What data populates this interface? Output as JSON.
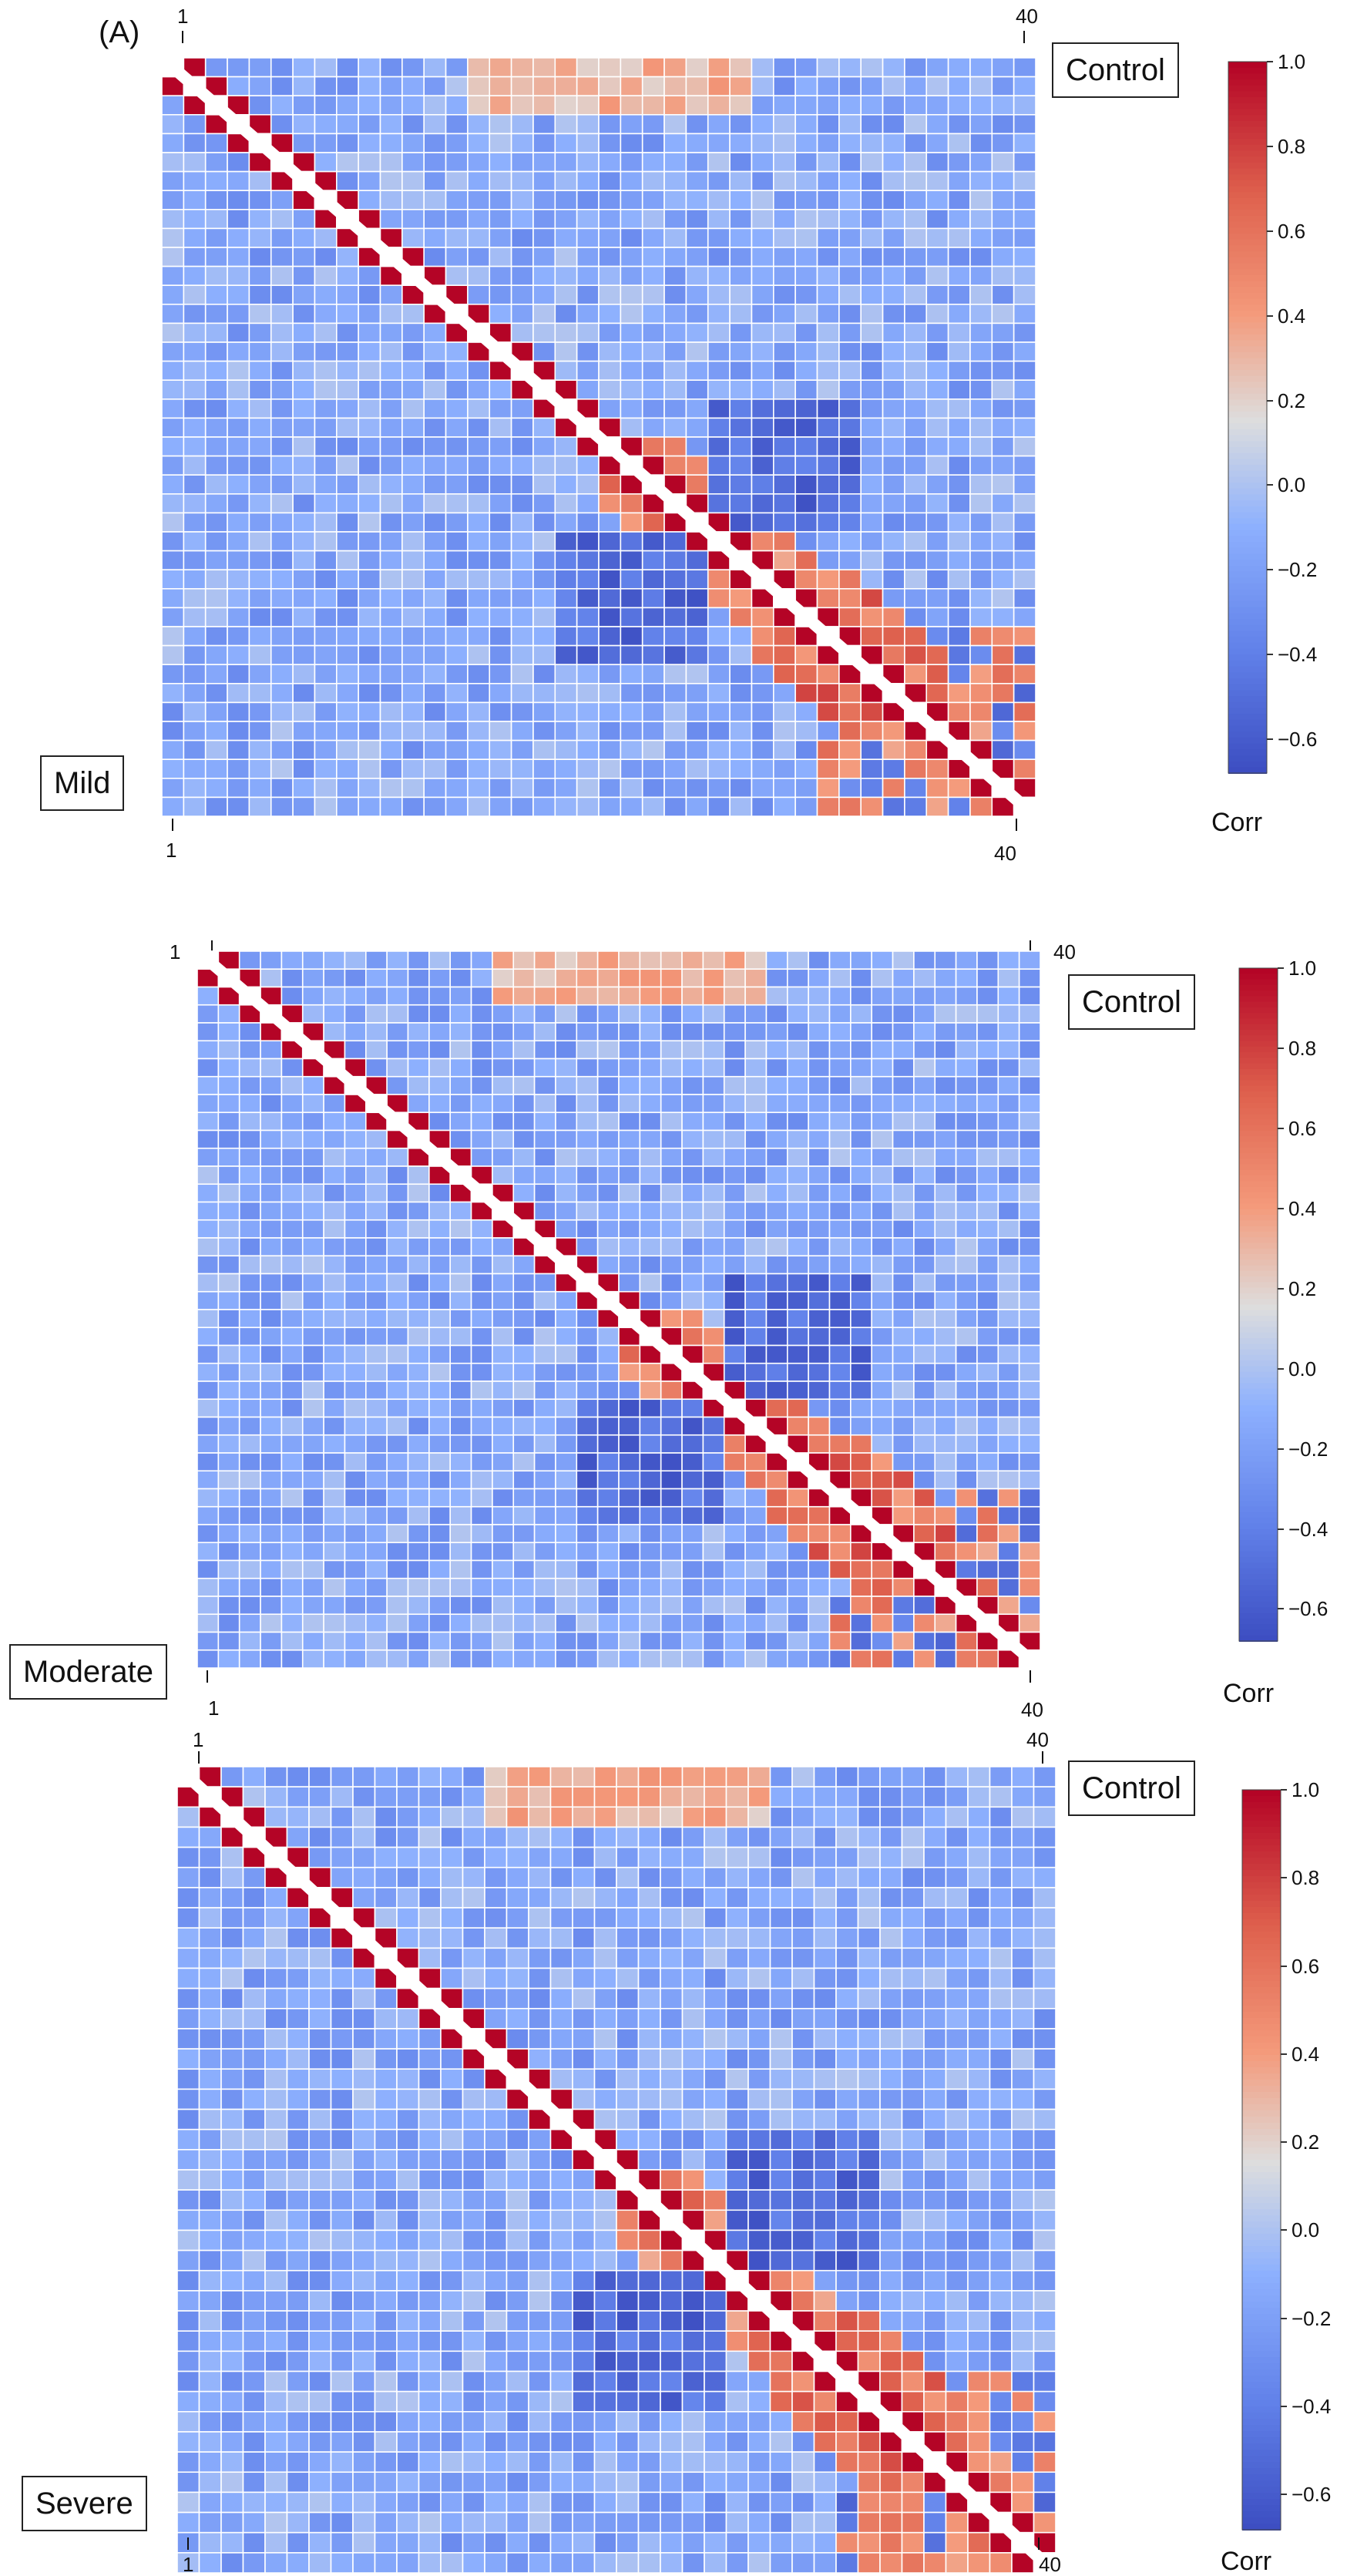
{
  "figure": {
    "panel_label": "(A)"
  },
  "colors": {
    "low": "#3b4cc0",
    "mid": "#dddddd",
    "high": "#b40426",
    "background": "#ffffff",
    "gridline": "#ffffff"
  },
  "chart_data": [
    {
      "type": "heatmap",
      "name": "Mild vs Control",
      "size": 40,
      "upper_label": "Control",
      "lower_label": "Mild",
      "tick_first": "1",
      "tick_last": "40",
      "colorbar": {
        "title": "Corr",
        "vmin": -0.68,
        "vmax": 1.0,
        "ticks": [
          1.0,
          0.8,
          0.6,
          0.4,
          0.2,
          0.0,
          -0.2,
          -0.4,
          -0.6
        ],
        "tick_labels": [
          "1.0",
          "0.8",
          "0.6",
          "0.4",
          "0.2",
          "0.0",
          "−0.2",
          "−0.4",
          "−0.6"
        ]
      },
      "seed": 11
    },
    {
      "type": "heatmap",
      "name": "Moderate vs Control",
      "size": 40,
      "upper_label": "Control",
      "lower_label": "Moderate",
      "tick_first": "1",
      "tick_last": "40",
      "colorbar": {
        "title": "Corr",
        "vmin": -0.68,
        "vmax": 1.0,
        "ticks": [
          1.0,
          0.8,
          0.6,
          0.4,
          0.2,
          0.0,
          -0.2,
          -0.4,
          -0.6
        ],
        "tick_labels": [
          "1.0",
          "0.8",
          "0.6",
          "0.4",
          "0.2",
          "0.0",
          "−0.2",
          "−0.4",
          "−0.6"
        ]
      },
      "seed": 23
    },
    {
      "type": "heatmap",
      "name": "Severe vs Control",
      "size": 40,
      "upper_label": "Control",
      "lower_label": "Severe",
      "tick_first": "1",
      "tick_last": "40",
      "colorbar": {
        "title": "Corr",
        "vmin": -0.68,
        "vmax": 1.0,
        "ticks": [
          1.0,
          0.8,
          0.6,
          0.4,
          0.2,
          0.0,
          -0.2,
          -0.4,
          -0.6
        ],
        "tick_labels": [
          "1.0",
          "0.8",
          "0.6",
          "0.4",
          "0.2",
          "0.0",
          "−0.2",
          "−0.4",
          "−0.6"
        ]
      },
      "seed": 37
    }
  ]
}
